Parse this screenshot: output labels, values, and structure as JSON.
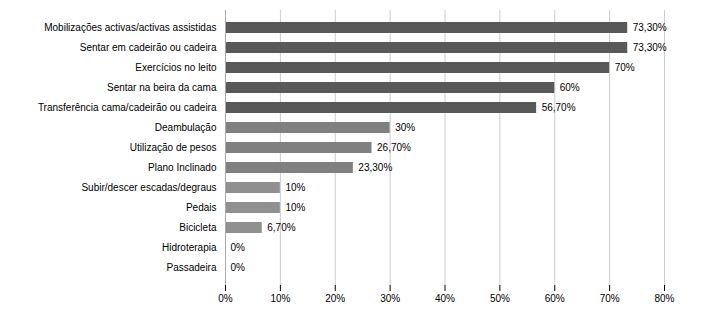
{
  "chart_data": {
    "type": "bar",
    "orientation": "horizontal",
    "categories": [
      "Mobilizações activas/activas assistidas",
      "Sentar em cadeirão ou cadeira",
      "Exercícios no leito",
      "Sentar na beira da cama",
      "Transferência cama/cadeirão ou cadeira",
      "Deambulação",
      "Utilização de pesos",
      "Plano Inclinado",
      "Subir/descer escadas/degraus",
      "Pedais",
      "Bicicleta",
      "Hidroterapia",
      "Passadeira"
    ],
    "values": [
      73.3,
      73.3,
      70,
      60,
      56.7,
      30,
      26.7,
      23.3,
      10,
      10,
      6.7,
      0,
      0
    ],
    "value_labels": [
      "73,30%",
      "73,30%",
      "70%",
      "60%",
      "56,70%",
      "30%",
      "26,70%",
      "23,30%",
      "10%",
      "10%",
      "6,70%",
      "0%",
      "0%"
    ],
    "colors": [
      "#595959",
      "#595959",
      "#595959",
      "#595959",
      "#595959",
      "#808080",
      "#808080",
      "#808080",
      "#909090",
      "#909090",
      "#909090",
      "#a0a0a0",
      "#a0a0a0"
    ],
    "xlim": [
      0,
      80
    ],
    "xticks": [
      {
        "value": 0,
        "label": "0%"
      },
      {
        "value": 10,
        "label": "10%"
      },
      {
        "value": 20,
        "label": "20%"
      },
      {
        "value": 30,
        "label": "30%"
      },
      {
        "value": 40,
        "label": "40%"
      },
      {
        "value": 50,
        "label": "50%"
      },
      {
        "value": 60,
        "label": "60%"
      },
      {
        "value": 70,
        "label": "70%"
      },
      {
        "value": 80,
        "label": "80%"
      }
    ],
    "grid": true,
    "data_labels": true
  }
}
